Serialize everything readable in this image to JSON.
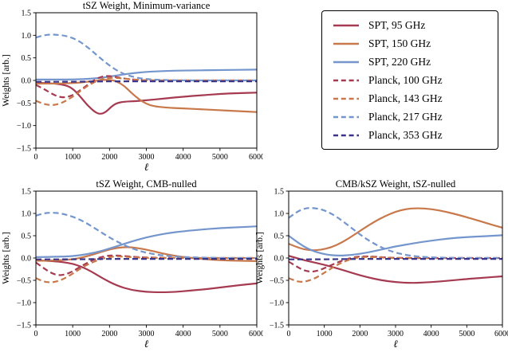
{
  "legend": {
    "entries": [
      {
        "label": "SPT, 95 GHz",
        "color": "#a63a50",
        "style": "solid"
      },
      {
        "label": "SPT, 150 GHz",
        "color": "#c8784a",
        "style": "solid"
      },
      {
        "label": "SPT, 220 GHz",
        "color": "#7496cd",
        "style": "solid"
      },
      {
        "label": "Planck, 100 GHz",
        "color": "#a63a50",
        "style": "dashed"
      },
      {
        "label": "Planck, 143 GHz",
        "color": "#c8784a",
        "style": "dashed"
      },
      {
        "label": "Planck, 217 GHz",
        "color": "#7496cd",
        "style": "dashed"
      },
      {
        "label": "Planck, 353 GHz",
        "color": "#3b3589",
        "style": "dashed"
      }
    ]
  },
  "chart_data": [
    {
      "type": "line",
      "title": "tSZ Weight, Minimum-variance",
      "xlabel": "ℓ",
      "ylabel": "Weights [arb.]",
      "xlim": [
        0,
        6000
      ],
      "ylim": [
        -1.5,
        1.5
      ],
      "xticks": [
        0,
        1000,
        2000,
        3000,
        4000,
        5000,
        6000
      ],
      "xtick_labels": [
        "0",
        "1000",
        "2000",
        "3000",
        "4000",
        "5000",
        "6000"
      ],
      "yticks": [
        -1.5,
        -1.0,
        -0.5,
        0.0,
        0.5,
        1.0,
        1.5
      ],
      "ytick_labels": [
        "−1.5",
        "−1.0",
        "−0.5",
        "0.0",
        "0.5",
        "1.0",
        "1.5"
      ],
      "legend_position": "outside-right",
      "grid": false,
      "series": [
        {
          "name": "SPT, 95 GHz",
          "color": "#a63a50",
          "dashed": false,
          "x": [
            0,
            400,
            800,
            1000,
            1200,
            1400,
            1600,
            1750,
            1900,
            2050,
            2200,
            2400,
            2700,
            3000,
            3500,
            4000,
            4500,
            5000,
            5500,
            6000
          ],
          "y": [
            -0.05,
            -0.06,
            -0.1,
            -0.18,
            -0.35,
            -0.55,
            -0.7,
            -0.75,
            -0.7,
            -0.58,
            -0.5,
            -0.47,
            -0.46,
            -0.44,
            -0.4,
            -0.36,
            -0.33,
            -0.3,
            -0.28,
            -0.27
          ]
        },
        {
          "name": "SPT, 150 GHz",
          "color": "#c8784a",
          "dashed": false,
          "x": [
            0,
            500,
            1000,
            1400,
            1700,
            2000,
            2200,
            2400,
            2600,
            2800,
            3000,
            3200,
            3500,
            4000,
            4500,
            5000,
            5500,
            6000
          ],
          "y": [
            -0.07,
            -0.07,
            -0.06,
            -0.03,
            0.0,
            0.02,
            -0.02,
            -0.12,
            -0.28,
            -0.42,
            -0.52,
            -0.57,
            -0.6,
            -0.62,
            -0.64,
            -0.66,
            -0.68,
            -0.7
          ]
        },
        {
          "name": "SPT, 220 GHz",
          "color": "#7496cd",
          "dashed": false,
          "x": [
            0,
            800,
            1400,
            1800,
            2200,
            2600,
            3000,
            3500,
            4000,
            5000,
            6000
          ],
          "y": [
            0.02,
            0.02,
            0.03,
            0.06,
            0.11,
            0.16,
            0.19,
            0.21,
            0.22,
            0.23,
            0.24
          ]
        },
        {
          "name": "Planck, 100 GHz",
          "color": "#a63a50",
          "dashed": true,
          "x": [
            0,
            200,
            400,
            600,
            800,
            1000,
            1200,
            1400,
            1600,
            1800,
            2000,
            2200,
            2500,
            2800,
            3200,
            4000,
            6000
          ],
          "y": [
            -0.1,
            -0.18,
            -0.28,
            -0.36,
            -0.38,
            -0.33,
            -0.22,
            -0.1,
            0.02,
            0.09,
            0.1,
            0.07,
            0.03,
            0.01,
            0.0,
            0.0,
            0.0
          ]
        },
        {
          "name": "Planck, 143 GHz",
          "color": "#c8784a",
          "dashed": true,
          "x": [
            0,
            200,
            400,
            600,
            800,
            1000,
            1200,
            1400,
            1600,
            1800,
            2000,
            2300,
            2600,
            3000,
            4000,
            6000
          ],
          "y": [
            -0.45,
            -0.52,
            -0.55,
            -0.53,
            -0.46,
            -0.36,
            -0.24,
            -0.12,
            -0.03,
            0.03,
            0.06,
            0.05,
            0.02,
            0.0,
            0.0,
            0.0
          ]
        },
        {
          "name": "Planck, 217 GHz",
          "color": "#7496cd",
          "dashed": true,
          "x": [
            0,
            200,
            400,
            600,
            800,
            1000,
            1200,
            1400,
            1600,
            1800,
            2000,
            2200,
            2400,
            2600,
            2800,
            3000,
            3400,
            4000,
            5000,
            6000
          ],
          "y": [
            0.95,
            1.0,
            1.02,
            1.01,
            0.99,
            0.94,
            0.86,
            0.74,
            0.6,
            0.46,
            0.33,
            0.22,
            0.14,
            0.09,
            0.05,
            0.03,
            0.01,
            0.0,
            0.0,
            0.0
          ]
        },
        {
          "name": "Planck, 353 GHz",
          "color": "#3b3589",
          "dashed": true,
          "x": [
            0,
            1000,
            2000,
            3000,
            4000,
            5000,
            6000
          ],
          "y": [
            -0.03,
            -0.03,
            -0.02,
            -0.02,
            -0.02,
            -0.02,
            -0.02
          ]
        }
      ]
    },
    {
      "type": "line",
      "title": "tSZ Weight, CMB-nulled",
      "xlabel": "ℓ",
      "ylabel": "Weights [arb.]",
      "xlim": [
        0,
        6000
      ],
      "ylim": [
        -1.5,
        1.5
      ],
      "xticks": [
        0,
        1000,
        2000,
        3000,
        4000,
        5000,
        6000
      ],
      "xtick_labels": [
        "0",
        "1000",
        "2000",
        "3000",
        "4000",
        "5000",
        "6000"
      ],
      "yticks": [
        -1.5,
        -1.0,
        -0.5,
        0.0,
        0.5,
        1.0,
        1.5
      ],
      "ytick_labels": [
        "−1.5",
        "−1.0",
        "−0.5",
        "0.0",
        "0.5",
        "1.0",
        "1.5"
      ],
      "grid": false,
      "series": [
        {
          "name": "SPT, 95 GHz",
          "color": "#a63a50",
          "dashed": false,
          "x": [
            0,
            500,
            1000,
            1400,
            1800,
            2200,
            2600,
            3000,
            3400,
            3800,
            4200,
            4600,
            5000,
            5500,
            6000
          ],
          "y": [
            -0.05,
            -0.07,
            -0.12,
            -0.25,
            -0.45,
            -0.62,
            -0.72,
            -0.76,
            -0.77,
            -0.76,
            -0.73,
            -0.7,
            -0.66,
            -0.61,
            -0.57
          ]
        },
        {
          "name": "SPT, 150 GHz",
          "color": "#c8784a",
          "dashed": false,
          "x": [
            0,
            500,
            1000,
            1300,
            1600,
            1900,
            2200,
            2500,
            2800,
            3100,
            3500,
            4000,
            4500,
            5000,
            5500,
            6000
          ],
          "y": [
            -0.06,
            -0.06,
            -0.03,
            0.02,
            0.09,
            0.17,
            0.23,
            0.25,
            0.22,
            0.17,
            0.09,
            0.02,
            -0.02,
            -0.05,
            -0.06,
            -0.07
          ]
        },
        {
          "name": "SPT, 220 GHz",
          "color": "#7496cd",
          "dashed": false,
          "x": [
            0,
            800,
            1200,
            1600,
            2000,
            2400,
            2800,
            3200,
            3600,
            4000,
            4500,
            5000,
            5500,
            6000
          ],
          "y": [
            0.02,
            0.03,
            0.06,
            0.12,
            0.21,
            0.32,
            0.42,
            0.5,
            0.56,
            0.6,
            0.64,
            0.67,
            0.69,
            0.71
          ]
        },
        {
          "name": "Planck, 100 GHz",
          "color": "#a63a50",
          "dashed": true,
          "x": [
            0,
            200,
            400,
            600,
            800,
            1000,
            1300,
            1600,
            1900,
            2200,
            2600,
            3000,
            4000,
            6000
          ],
          "y": [
            -0.1,
            -0.22,
            -0.33,
            -0.39,
            -0.37,
            -0.3,
            -0.15,
            -0.02,
            0.05,
            0.06,
            0.03,
            0.01,
            0.0,
            0.0
          ]
        },
        {
          "name": "Planck, 143 GHz",
          "color": "#c8784a",
          "dashed": true,
          "x": [
            0,
            200,
            400,
            600,
            800,
            1000,
            1300,
            1600,
            1900,
            2200,
            2600,
            3000,
            4000,
            6000
          ],
          "y": [
            -0.45,
            -0.53,
            -0.55,
            -0.52,
            -0.45,
            -0.35,
            -0.19,
            -0.07,
            0.01,
            0.04,
            0.02,
            0.0,
            0.0,
            0.0
          ]
        },
        {
          "name": "Planck, 217 GHz",
          "color": "#7496cd",
          "dashed": true,
          "x": [
            0,
            200,
            400,
            700,
            1000,
            1300,
            1600,
            1900,
            2200,
            2500,
            2800,
            3100,
            3500,
            4000,
            5000,
            6000
          ],
          "y": [
            0.95,
            1.0,
            1.02,
            1.0,
            0.93,
            0.82,
            0.67,
            0.51,
            0.37,
            0.25,
            0.16,
            0.1,
            0.05,
            0.02,
            0.0,
            0.0
          ]
        },
        {
          "name": "Planck, 353 GHz",
          "color": "#3b3589",
          "dashed": true,
          "x": [
            0,
            1000,
            2000,
            3000,
            4000,
            5000,
            6000
          ],
          "y": [
            -0.03,
            -0.03,
            -0.02,
            -0.02,
            -0.02,
            -0.02,
            -0.02
          ]
        }
      ]
    },
    {
      "type": "line",
      "title": "CMB/kSZ Weight, tSZ-nulled",
      "xlabel": "ℓ",
      "ylabel": "Weights [arb.]",
      "xlim": [
        0,
        6000
      ],
      "ylim": [
        -1.5,
        1.5
      ],
      "xticks": [
        0,
        1000,
        2000,
        3000,
        4000,
        5000,
        6000
      ],
      "xtick_labels": [
        "0",
        "1000",
        "2000",
        "3000",
        "4000",
        "5000",
        "6000"
      ],
      "yticks": [
        -1.5,
        -1.0,
        -0.5,
        0.0,
        0.5,
        1.0,
        1.5
      ],
      "ytick_labels": [
        "−1.5",
        "−1.0",
        "−0.5",
        "0.0",
        "0.5",
        "1.0",
        "1.5"
      ],
      "grid": false,
      "series": [
        {
          "name": "SPT, 95 GHz",
          "color": "#a63a50",
          "dashed": false,
          "x": [
            0,
            300,
            600,
            1000,
            1400,
            1800,
            2200,
            2600,
            3000,
            3400,
            3800,
            4200,
            4600,
            5000,
            5500,
            6000
          ],
          "y": [
            0.05,
            -0.02,
            -0.08,
            -0.15,
            -0.24,
            -0.34,
            -0.43,
            -0.5,
            -0.54,
            -0.56,
            -0.55,
            -0.53,
            -0.5,
            -0.47,
            -0.44,
            -0.41
          ]
        },
        {
          "name": "SPT, 150 GHz",
          "color": "#c8784a",
          "dashed": false,
          "x": [
            0,
            300,
            600,
            900,
            1200,
            1500,
            1800,
            2100,
            2400,
            2700,
            3000,
            3300,
            3600,
            4000,
            4400,
            4800,
            5200,
            5600,
            6000
          ],
          "y": [
            0.32,
            0.22,
            0.17,
            0.18,
            0.24,
            0.35,
            0.5,
            0.66,
            0.81,
            0.94,
            1.04,
            1.1,
            1.12,
            1.1,
            1.04,
            0.96,
            0.87,
            0.77,
            0.68
          ]
        },
        {
          "name": "SPT, 220 GHz",
          "color": "#7496cd",
          "dashed": false,
          "x": [
            0,
            300,
            600,
            1000,
            1400,
            1800,
            2200,
            2600,
            3000,
            3500,
            4000,
            4500,
            5000,
            5500,
            6000
          ],
          "y": [
            0.5,
            0.32,
            0.18,
            0.08,
            0.05,
            0.07,
            0.12,
            0.19,
            0.26,
            0.33,
            0.39,
            0.44,
            0.47,
            0.49,
            0.51
          ]
        },
        {
          "name": "Planck, 100 GHz",
          "color": "#a63a50",
          "dashed": true,
          "x": [
            0,
            200,
            400,
            600,
            800,
            1000,
            1300,
            1600,
            1900,
            2200,
            2600,
            3000,
            4000,
            6000
          ],
          "y": [
            -0.08,
            -0.18,
            -0.27,
            -0.31,
            -0.29,
            -0.23,
            -0.12,
            -0.03,
            0.03,
            0.04,
            0.02,
            0.0,
            0.0,
            0.0
          ]
        },
        {
          "name": "Planck, 143 GHz",
          "color": "#c8784a",
          "dashed": true,
          "x": [
            0,
            200,
            400,
            600,
            800,
            1000,
            1300,
            1600,
            1900,
            2200,
            2600,
            3000,
            4000,
            6000
          ],
          "y": [
            -0.45,
            -0.52,
            -0.54,
            -0.5,
            -0.43,
            -0.33,
            -0.18,
            -0.06,
            0.01,
            0.03,
            0.01,
            0.0,
            0.0,
            0.0
          ]
        },
        {
          "name": "Planck, 217 GHz",
          "color": "#7496cd",
          "dashed": true,
          "x": [
            0,
            200,
            400,
            600,
            900,
            1200,
            1500,
            1800,
            2100,
            2400,
            2700,
            3000,
            3400,
            4000,
            5000,
            6000
          ],
          "y": [
            0.9,
            1.02,
            1.1,
            1.13,
            1.1,
            1.0,
            0.84,
            0.65,
            0.47,
            0.32,
            0.2,
            0.12,
            0.05,
            0.01,
            0.0,
            0.0
          ]
        },
        {
          "name": "Planck, 353 GHz",
          "color": "#3b3589",
          "dashed": true,
          "x": [
            0,
            1000,
            2000,
            3000,
            4000,
            5000,
            6000
          ],
          "y": [
            -0.03,
            -0.03,
            -0.02,
            -0.02,
            -0.02,
            -0.02,
            -0.02
          ]
        }
      ]
    }
  ]
}
